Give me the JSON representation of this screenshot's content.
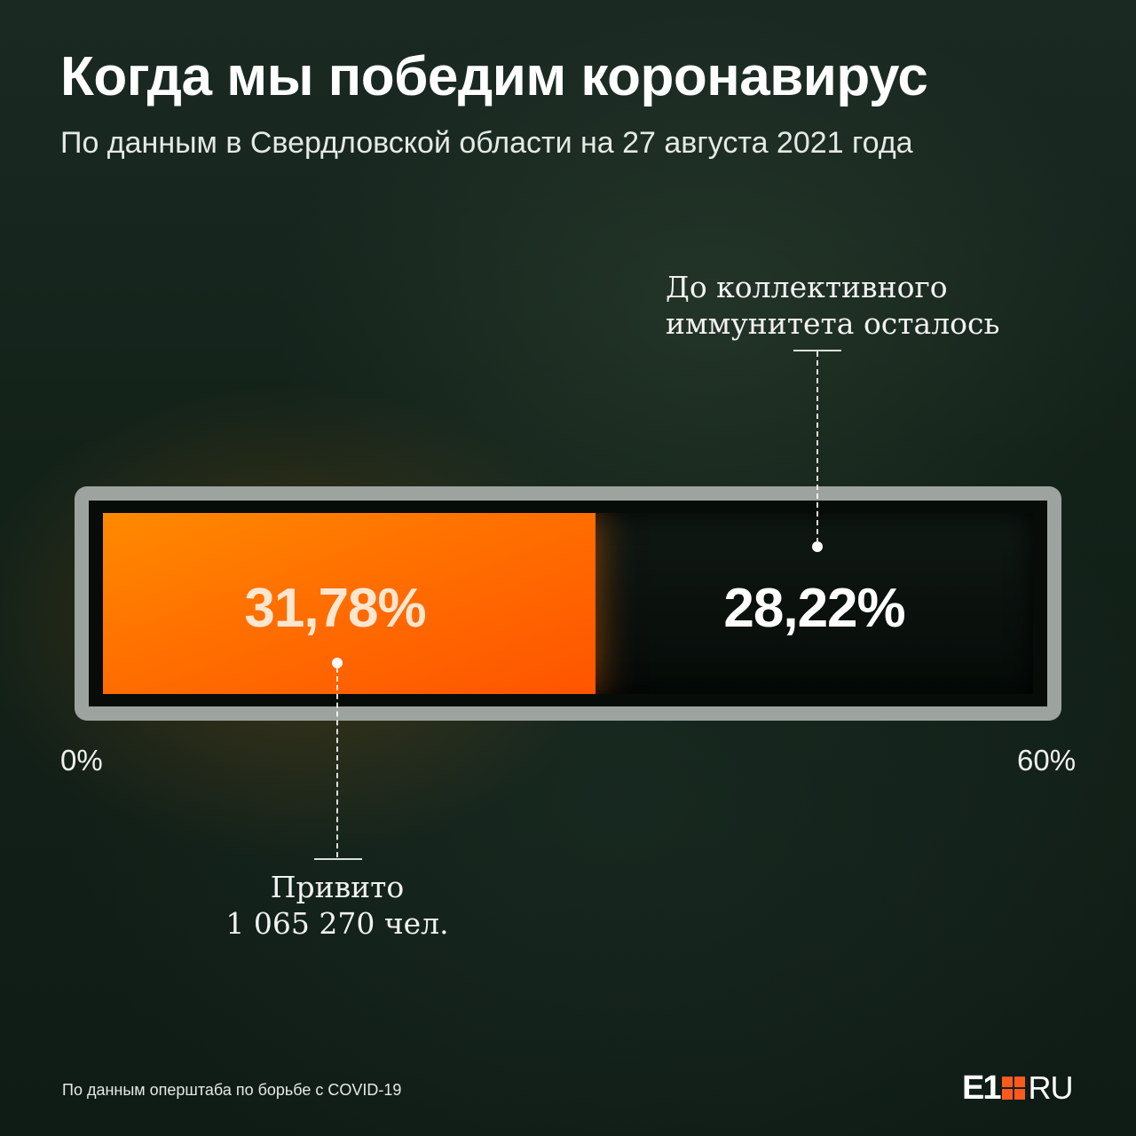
{
  "header": {
    "title": "Когда мы победим коронавирус",
    "subtitle": "По данным в Свердловской области на 27 августа 2021 года"
  },
  "chart_data": {
    "type": "bar",
    "orientation": "horizontal-stacked",
    "axis": {
      "min_label": "0%",
      "max_label": "60%",
      "range": [
        0,
        60
      ]
    },
    "segments": [
      {
        "value": 31.78,
        "value_label": "31,78%",
        "color": "#ff6f00",
        "annotation": [
          "Привито",
          "1 065 270 чел."
        ]
      },
      {
        "value": 28.22,
        "value_label": "28,22%",
        "color": "#0a110d",
        "annotation": [
          "До коллективного",
          "иммунитета осталось"
        ]
      }
    ]
  },
  "footer": {
    "source": "По данным оперштаба по борьбе с COVID-19",
    "logo_left": "E1",
    "logo_right": "RU",
    "logo_accent": "#ff5a1e"
  }
}
